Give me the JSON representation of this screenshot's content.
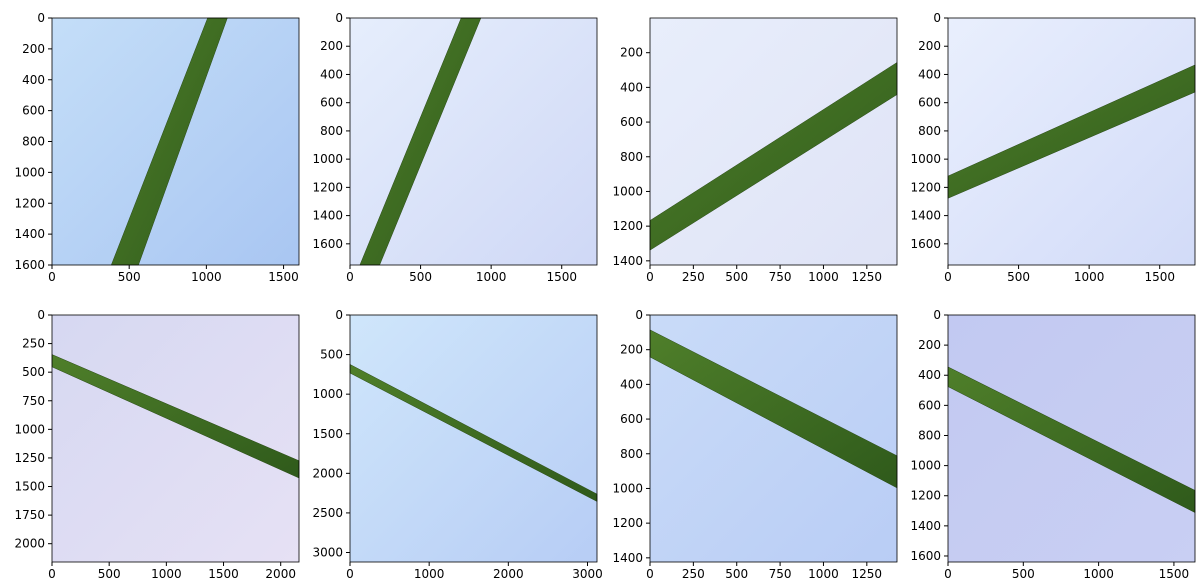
{
  "chart_data": [
    {
      "type": "image",
      "xlim": [
        0,
        1600
      ],
      "ylim": [
        1600,
        0
      ],
      "xticks": [
        0,
        500,
        1000,
        1500
      ],
      "yticks": [
        0,
        200,
        400,
        600,
        800,
        1000,
        1200,
        1400,
        1600
      ]
    },
    {
      "type": "image",
      "xlim": [
        0,
        1750
      ],
      "ylim": [
        1750,
        0
      ],
      "xticks": [
        0,
        500,
        1000,
        1500
      ],
      "yticks": [
        0,
        200,
        400,
        600,
        800,
        1000,
        1200,
        1400,
        1600
      ]
    },
    {
      "type": "image",
      "xlim": [
        0,
        1424
      ],
      "ylim": [
        1424,
        0
      ],
      "xticks": [
        0,
        250,
        500,
        750,
        1000,
        1250
      ],
      "yticks": [
        200,
        400,
        600,
        800,
        1000,
        1200,
        1400
      ]
    },
    {
      "type": "image",
      "xlim": [
        0,
        1750
      ],
      "ylim": [
        1750,
        0
      ],
      "xticks": [
        0,
        500,
        1000,
        1500
      ],
      "yticks": [
        0,
        200,
        400,
        600,
        800,
        1000,
        1200,
        1400,
        1600
      ]
    },
    {
      "type": "image",
      "xlim": [
        0,
        2160
      ],
      "ylim": [
        2160,
        0
      ],
      "xticks": [
        0,
        500,
        1000,
        1500,
        2000
      ],
      "yticks": [
        0,
        250,
        500,
        750,
        1000,
        1250,
        1500,
        1750,
        2000
      ]
    },
    {
      "type": "image",
      "xlim": [
        0,
        3120
      ],
      "ylim": [
        3120,
        0
      ],
      "xticks": [
        0,
        1000,
        2000,
        3000
      ],
      "yticks": [
        0,
        500,
        1000,
        1500,
        2000,
        2500,
        3000
      ]
    },
    {
      "type": "image",
      "xlim": [
        0,
        1424
      ],
      "ylim": [
        1424,
        0
      ],
      "xticks": [
        0,
        250,
        500,
        750,
        1000,
        1250
      ],
      "yticks": [
        0,
        200,
        400,
        600,
        800,
        1000,
        1200,
        1400
      ]
    },
    {
      "type": "image",
      "xlim": [
        0,
        1640
      ],
      "ylim": [
        1640,
        0
      ],
      "xticks": [
        0,
        500,
        1000,
        1500
      ],
      "yticks": [
        0,
        200,
        400,
        600,
        800,
        1000,
        1200,
        1400,
        1600
      ]
    }
  ]
}
